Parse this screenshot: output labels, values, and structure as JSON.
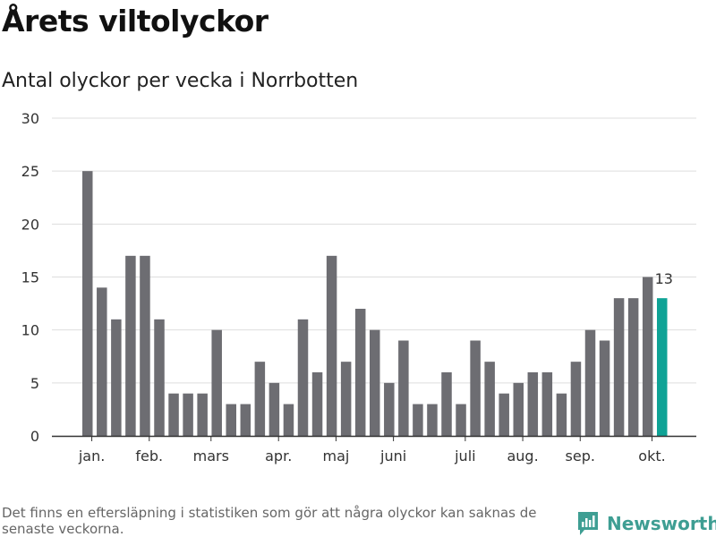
{
  "title": "Årets viltolyckor",
  "subtitle": "Antal olyckor per vecka i Norrbotten",
  "footnote": "Det finns en eftersläpning i statistiken som gör att några olyckor kan saknas de senaste veckorna.",
  "brand": {
    "name": "Newsworthy",
    "icon": "newsworthy-logo-icon",
    "color": "#3e9e93"
  },
  "colors": {
    "bar": "#6d6d72",
    "highlight": "#0fa396",
    "grid": "#dddddd",
    "axis": "#333333"
  },
  "chart_data": {
    "type": "bar",
    "title": "Antal olyckor per vecka i Norrbotten",
    "xlabel": "",
    "ylabel": "",
    "ylim": [
      0,
      30
    ],
    "yticks": [
      0,
      5,
      10,
      15,
      20,
      25,
      30
    ],
    "values": [
      25,
      14,
      11,
      17,
      17,
      11,
      4,
      4,
      4,
      10,
      3,
      3,
      7,
      5,
      3,
      11,
      6,
      17,
      7,
      12,
      10,
      5,
      9,
      3,
      3,
      6,
      3,
      9,
      7,
      4,
      5,
      6,
      6,
      4,
      7,
      10,
      9,
      13,
      13,
      15,
      13
    ],
    "highlight_index": 40,
    "highlight_label": "13",
    "month_labels": [
      {
        "label": "jan.",
        "bar_index": 0.3
      },
      {
        "label": "feb.",
        "bar_index": 4.3
      },
      {
        "label": "mars",
        "bar_index": 8.6
      },
      {
        "label": "apr.",
        "bar_index": 13.3
      },
      {
        "label": "maj",
        "bar_index": 17.3
      },
      {
        "label": "juni",
        "bar_index": 21.3
      },
      {
        "label": "juli",
        "bar_index": 26.3
      },
      {
        "label": "aug.",
        "bar_index": 30.3
      },
      {
        "label": "sep.",
        "bar_index": 34.3
      },
      {
        "label": "okt.",
        "bar_index": 39.3
      }
    ]
  }
}
